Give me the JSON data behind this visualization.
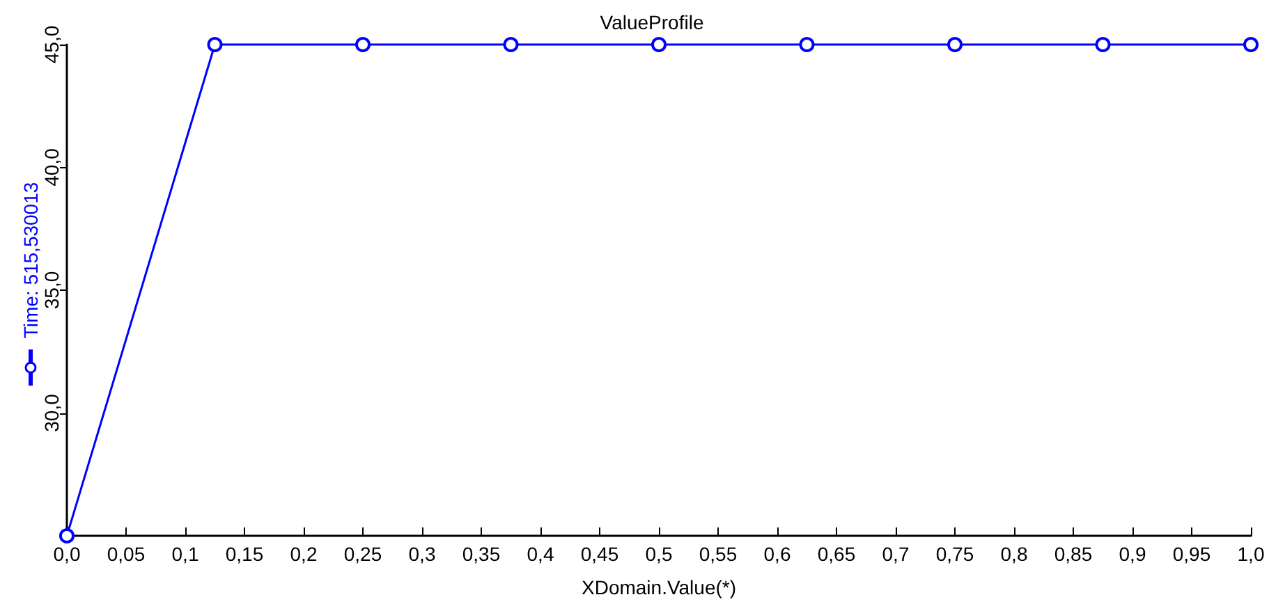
{
  "chart_data": {
    "type": "line",
    "title": "ValueProfile",
    "xlabel": "XDomain.Value(*)",
    "x": [
      0,
      0.125,
      0.25,
      0.375,
      0.5,
      0.625,
      0.75,
      0.875,
      1
    ],
    "series": [
      {
        "name": "Time: 515,530013",
        "color": "#0000ff",
        "values": [
          25,
          45,
          45,
          45,
          45,
          45,
          45,
          45,
          45
        ]
      }
    ],
    "xlim": [
      0,
      1
    ],
    "xticks": [
      {
        "value": 0,
        "label": "0,0"
      },
      {
        "value": 0.05,
        "label": "0,05"
      },
      {
        "value": 0.1,
        "label": "0,1"
      },
      {
        "value": 0.15,
        "label": "0,15"
      },
      {
        "value": 0.2,
        "label": "0,2"
      },
      {
        "value": 0.25,
        "label": "0,25"
      },
      {
        "value": 0.3,
        "label": "0,3"
      },
      {
        "value": 0.35,
        "label": "0,35"
      },
      {
        "value": 0.4,
        "label": "0,4"
      },
      {
        "value": 0.45,
        "label": "0,45"
      },
      {
        "value": 0.5,
        "label": "0,5"
      },
      {
        "value": 0.55,
        "label": "0,55"
      },
      {
        "value": 0.6,
        "label": "0,6"
      },
      {
        "value": 0.65,
        "label": "0,65"
      },
      {
        "value": 0.7,
        "label": "0,7"
      },
      {
        "value": 0.75,
        "label": "0,75"
      },
      {
        "value": 0.8,
        "label": "0,8"
      },
      {
        "value": 0.85,
        "label": "0,85"
      },
      {
        "value": 0.9,
        "label": "0,9"
      },
      {
        "value": 0.95,
        "label": "0,95"
      },
      {
        "value": 1,
        "label": "1,0"
      }
    ],
    "ylim": [
      25,
      45
    ],
    "yticks": [
      {
        "value": 30,
        "label": "30,0"
      },
      {
        "value": 35,
        "label": "35,0"
      },
      {
        "value": 40,
        "label": "40,0"
      },
      {
        "value": 45,
        "label": "45,0"
      }
    ],
    "grid": false,
    "legend": "left",
    "marker": "circle",
    "line_style": "solid"
  }
}
